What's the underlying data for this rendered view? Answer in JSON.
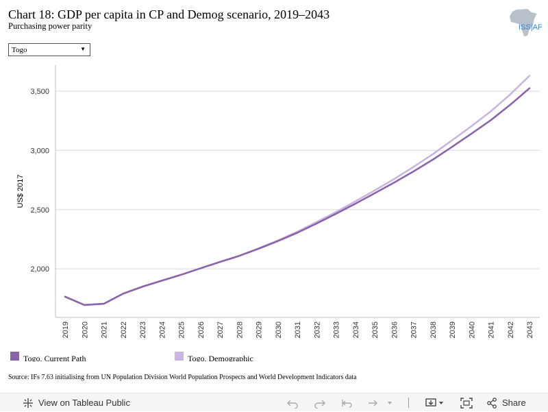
{
  "header": {
    "title": "Chart 18: GDP per capita in CP and Demog scenario, 2019–2043",
    "subtitle": "Purchasing power parity",
    "logo_text": "ISS|AFI"
  },
  "filter": {
    "selected": "Togo",
    "arrow": "▼"
  },
  "chart_data": {
    "type": "line",
    "title": "Chart 18: GDP per capita in CP and Demog scenario, 2019–2043",
    "subtitle": "Purchasing power parity",
    "xlabel": "",
    "ylabel": "US$ 2017",
    "categories": [
      "2019",
      "2020",
      "2021",
      "2022",
      "2023",
      "2024",
      "2025",
      "2026",
      "2027",
      "2028",
      "2029",
      "2030",
      "2031",
      "2032",
      "2033",
      "2034",
      "2035",
      "2036",
      "2037",
      "2038",
      "2039",
      "2040",
      "2041",
      "2042",
      "2043"
    ],
    "y_ticks": [
      2000,
      2500,
      3000,
      3500
    ],
    "y_tick_labels": [
      "2,000",
      "2,500",
      "3,000",
      "3,500"
    ],
    "ylim": [
      1590,
      3720
    ],
    "grid": true,
    "legend_position": "bottom",
    "series": [
      {
        "name": "Togo, Current Path",
        "color": "#8a63ad",
        "values": [
          1765,
          1695,
          1705,
          1790,
          1850,
          1900,
          1950,
          2005,
          2058,
          2110,
          2170,
          2235,
          2305,
          2383,
          2465,
          2550,
          2638,
          2728,
          2822,
          2922,
          3030,
          3142,
          3255,
          3385,
          3525
        ]
      },
      {
        "name": "Togo, Demographic",
        "color": "#c9b6de",
        "values": [
          1765,
          1695,
          1705,
          1790,
          1850,
          1900,
          1950,
          2005,
          2058,
          2110,
          2172,
          2240,
          2313,
          2395,
          2480,
          2570,
          2662,
          2758,
          2860,
          2968,
          3085,
          3205,
          3330,
          3472,
          3630
        ]
      }
    ]
  },
  "source": "Source: IFs 7.63 initialising from UN Population Division World Population Prospects and World Development Indicators data",
  "toolbar": {
    "view_label": "View on Tableau Public",
    "share_label": "Share",
    "icons": [
      "tableau-logo-icon",
      "undo-icon",
      "redo-icon",
      "revert-icon",
      "refresh-icon",
      "download-icon",
      "fullscreen-icon",
      "share-icon"
    ]
  }
}
